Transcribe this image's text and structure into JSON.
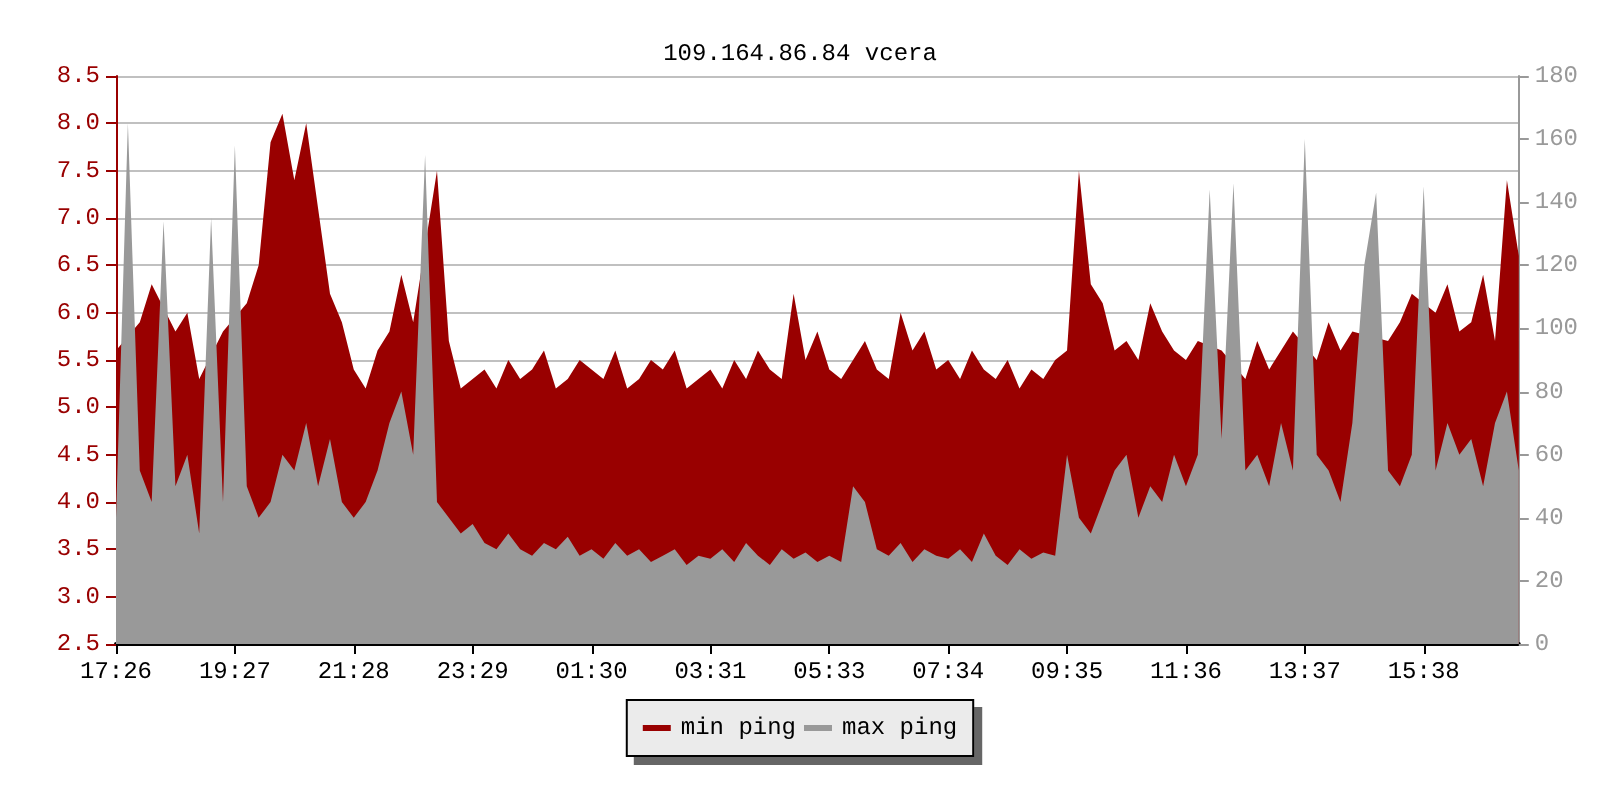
{
  "chart_data": {
    "type": "area",
    "title": "109.164.86.84 vcera",
    "categories": [
      "17:26",
      null,
      null,
      null,
      null,
      null,
      null,
      null,
      null,
      null,
      "19:27",
      null,
      null,
      null,
      null,
      null,
      null,
      null,
      null,
      null,
      "21:28",
      null,
      null,
      null,
      null,
      null,
      null,
      null,
      null,
      null,
      "23:29",
      null,
      null,
      null,
      null,
      null,
      null,
      null,
      null,
      null,
      "01:30",
      null,
      null,
      null,
      null,
      null,
      null,
      null,
      null,
      null,
      "03:31",
      null,
      null,
      null,
      null,
      null,
      null,
      null,
      null,
      null,
      "05:33",
      null,
      null,
      null,
      null,
      null,
      null,
      null,
      null,
      null,
      "07:34",
      null,
      null,
      null,
      null,
      null,
      null,
      null,
      null,
      null,
      "09:35",
      null,
      null,
      null,
      null,
      null,
      null,
      null,
      null,
      null,
      "11:36",
      null,
      null,
      null,
      null,
      null,
      null,
      null,
      null,
      null,
      "13:37",
      null,
      null,
      null,
      null,
      null,
      null,
      null,
      null,
      null,
      "15:38",
      null,
      null,
      null,
      null,
      null,
      null,
      null,
      null
    ],
    "series": [
      {
        "name": "min ping",
        "color": "#990000",
        "values": [
          5.6,
          null,
          5.9,
          6.3,
          null,
          5.8,
          6.0,
          5.3,
          null,
          5.8,
          null,
          6.1,
          6.5,
          7.8,
          8.1,
          7.4,
          8.0,
          7.1,
          6.2,
          5.9,
          5.4,
          5.2,
          5.6,
          5.8,
          6.4,
          5.9,
          null,
          7.5,
          5.7,
          5.2,
          5.3,
          5.4,
          5.2,
          5.5,
          5.3,
          5.4,
          5.6,
          5.2,
          5.3,
          5.5,
          5.4,
          5.3,
          5.6,
          5.2,
          5.3,
          5.5,
          5.4,
          5.6,
          5.2,
          5.3,
          5.4,
          5.2,
          5.5,
          5.3,
          5.6,
          5.4,
          5.3,
          6.2,
          5.5,
          5.8,
          5.4,
          5.3,
          5.5,
          5.7,
          5.4,
          5.3,
          6.0,
          5.6,
          5.8,
          5.4,
          5.5,
          5.3,
          5.6,
          5.4,
          5.3,
          5.5,
          5.2,
          5.4,
          5.3,
          5.5,
          5.6,
          7.5,
          6.3,
          6.1,
          5.6,
          5.7,
          5.5,
          6.1,
          5.8,
          5.6,
          5.5,
          5.7,
          null,
          5.6,
          null,
          5.3,
          5.7,
          5.4,
          5.6,
          5.8,
          null,
          5.5,
          5.9,
          5.6,
          5.8,
          null,
          null,
          5.7,
          5.9,
          6.2,
          null,
          6.0,
          6.3,
          5.8,
          5.9,
          6.4,
          5.7,
          7.4,
          6.6
        ]
      },
      {
        "name": "max ping",
        "color": "#999999",
        "axis": "y2",
        "values": [
          40,
          165,
          55,
          45,
          134,
          50,
          60,
          35,
          135,
          45,
          158,
          50,
          40,
          45,
          60,
          55,
          70,
          50,
          65,
          45,
          40,
          45,
          55,
          70,
          80,
          60,
          155,
          45,
          40,
          35,
          38,
          32,
          30,
          35,
          30,
          28,
          32,
          30,
          34,
          28,
          30,
          27,
          32,
          28,
          30,
          26,
          28,
          30,
          25,
          28,
          27,
          30,
          26,
          32,
          28,
          25,
          30,
          27,
          29,
          26,
          28,
          26,
          50,
          45,
          30,
          28,
          32,
          26,
          30,
          28,
          27,
          30,
          26,
          35,
          28,
          25,
          30,
          27,
          29,
          28,
          60,
          40,
          35,
          45,
          55,
          60,
          40,
          50,
          45,
          60,
          50,
          60,
          144,
          65,
          146,
          55,
          60,
          50,
          70,
          55,
          160,
          60,
          55,
          45,
          70,
          120,
          143,
          55,
          50,
          60,
          145,
          55,
          70,
          60,
          65,
          50,
          70,
          80,
          55
        ]
      }
    ],
    "ylim": [
      2.5,
      8.5
    ],
    "yticks": [
      2.5,
      {
        "value": 3,
        "label": "3.0"
      },
      3.5,
      {
        "value": 4,
        "label": "4.0"
      },
      4.5,
      {
        "value": 5,
        "label": "5.0"
      },
      5.5,
      {
        "value": 6,
        "label": "6.0"
      },
      6.5,
      {
        "value": 7,
        "label": "7.0"
      },
      7.5,
      {
        "value": 8,
        "label": "8.0"
      },
      8.5
    ],
    "y2lim": [
      0,
      180
    ],
    "y2ticks": [
      0,
      20,
      40,
      60,
      80,
      100,
      120,
      140,
      160,
      180
    ],
    "grid": "y",
    "legend": "bottom",
    "marker": "none"
  }
}
